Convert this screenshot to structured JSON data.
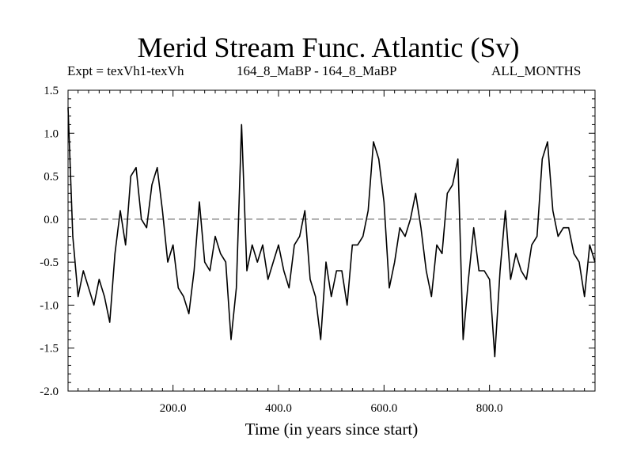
{
  "chart_data": {
    "type": "line",
    "title": "Merid Stream Func. Atlantic (Sv)",
    "annotations": {
      "left": "Expt = texVh1-texVh",
      "center": "164_8_MaBP - 164_8_MaBP",
      "right": "ALL_MONTHS"
    },
    "xlabel": "Time (in years since start)",
    "ylabel": "",
    "xlim": [
      1,
      1000
    ],
    "ylim": [
      -2.0,
      1.5
    ],
    "xticks": [
      200,
      400,
      600,
      800
    ],
    "xtick_labels": [
      "200.0",
      "400.0",
      "600.0",
      "800.0"
    ],
    "yticks": [
      -2.0,
      -1.5,
      -1.0,
      -0.5,
      0.0,
      0.5,
      1.0,
      1.5
    ],
    "ytick_labels": [
      "-2.0",
      "-1.5",
      "-1.0",
      "-0.5",
      "0.0",
      "0.5",
      "1.0",
      "1.5"
    ],
    "zero_line": {
      "value": 0.0,
      "style": "dashed"
    },
    "grid": false,
    "line_color": "#000000",
    "series": [
      {
        "x": [
          1,
          10,
          20,
          30,
          40,
          50,
          60,
          70,
          80,
          90,
          100,
          110,
          120,
          130,
          140,
          150,
          160,
          170,
          180,
          190,
          200,
          210,
          220,
          230,
          240,
          250,
          260,
          270,
          280,
          290,
          300,
          310,
          320,
          330,
          340,
          350,
          360,
          370,
          380,
          390,
          400,
          410,
          420,
          430,
          440,
          450,
          460,
          470,
          480,
          490,
          500,
          510,
          520,
          530,
          540,
          550,
          560,
          570,
          580,
          590,
          600,
          610,
          620,
          630,
          640,
          650,
          660,
          670,
          680,
          690,
          700,
          710,
          720,
          730,
          740,
          750,
          760,
          770,
          780,
          790,
          800,
          810,
          820,
          830,
          840,
          850,
          860,
          870,
          880,
          890,
          900,
          910,
          920,
          930,
          940,
          950,
          960,
          970,
          980,
          990,
          1000
        ],
        "values": [
          1.3,
          -0.2,
          -0.9,
          -0.6,
          -0.8,
          -1.0,
          -0.7,
          -0.9,
          -1.2,
          -0.4,
          0.1,
          -0.3,
          0.5,
          0.6,
          0.0,
          -0.1,
          0.4,
          0.6,
          0.1,
          -0.5,
          -0.3,
          -0.8,
          -0.9,
          -1.1,
          -0.6,
          0.2,
          -0.5,
          -0.6,
          -0.2,
          -0.4,
          -0.5,
          -1.4,
          -0.8,
          1.1,
          -0.6,
          -0.3,
          -0.5,
          -0.3,
          -0.7,
          -0.5,
          -0.3,
          -0.6,
          -0.8,
          -0.3,
          -0.2,
          0.1,
          -0.7,
          -0.9,
          -1.4,
          -0.5,
          -0.9,
          -0.6,
          -0.6,
          -1.0,
          -0.3,
          -0.3,
          -0.2,
          0.1,
          0.9,
          0.7,
          0.2,
          -0.8,
          -0.5,
          -0.1,
          -0.2,
          0.0,
          0.3,
          -0.1,
          -0.6,
          -0.9,
          -0.3,
          -0.4,
          0.3,
          0.4,
          0.7,
          -1.4,
          -0.7,
          -0.1,
          -0.6,
          -0.6,
          -0.7,
          -1.6,
          -0.6,
          0.1,
          -0.7,
          -0.4,
          -0.6,
          -0.7,
          -0.3,
          -0.2,
          0.7,
          0.9,
          0.1,
          -0.2,
          -0.1,
          -0.1,
          -0.4,
          -0.5,
          -0.9,
          -0.3,
          -0.5
        ]
      }
    ]
  }
}
